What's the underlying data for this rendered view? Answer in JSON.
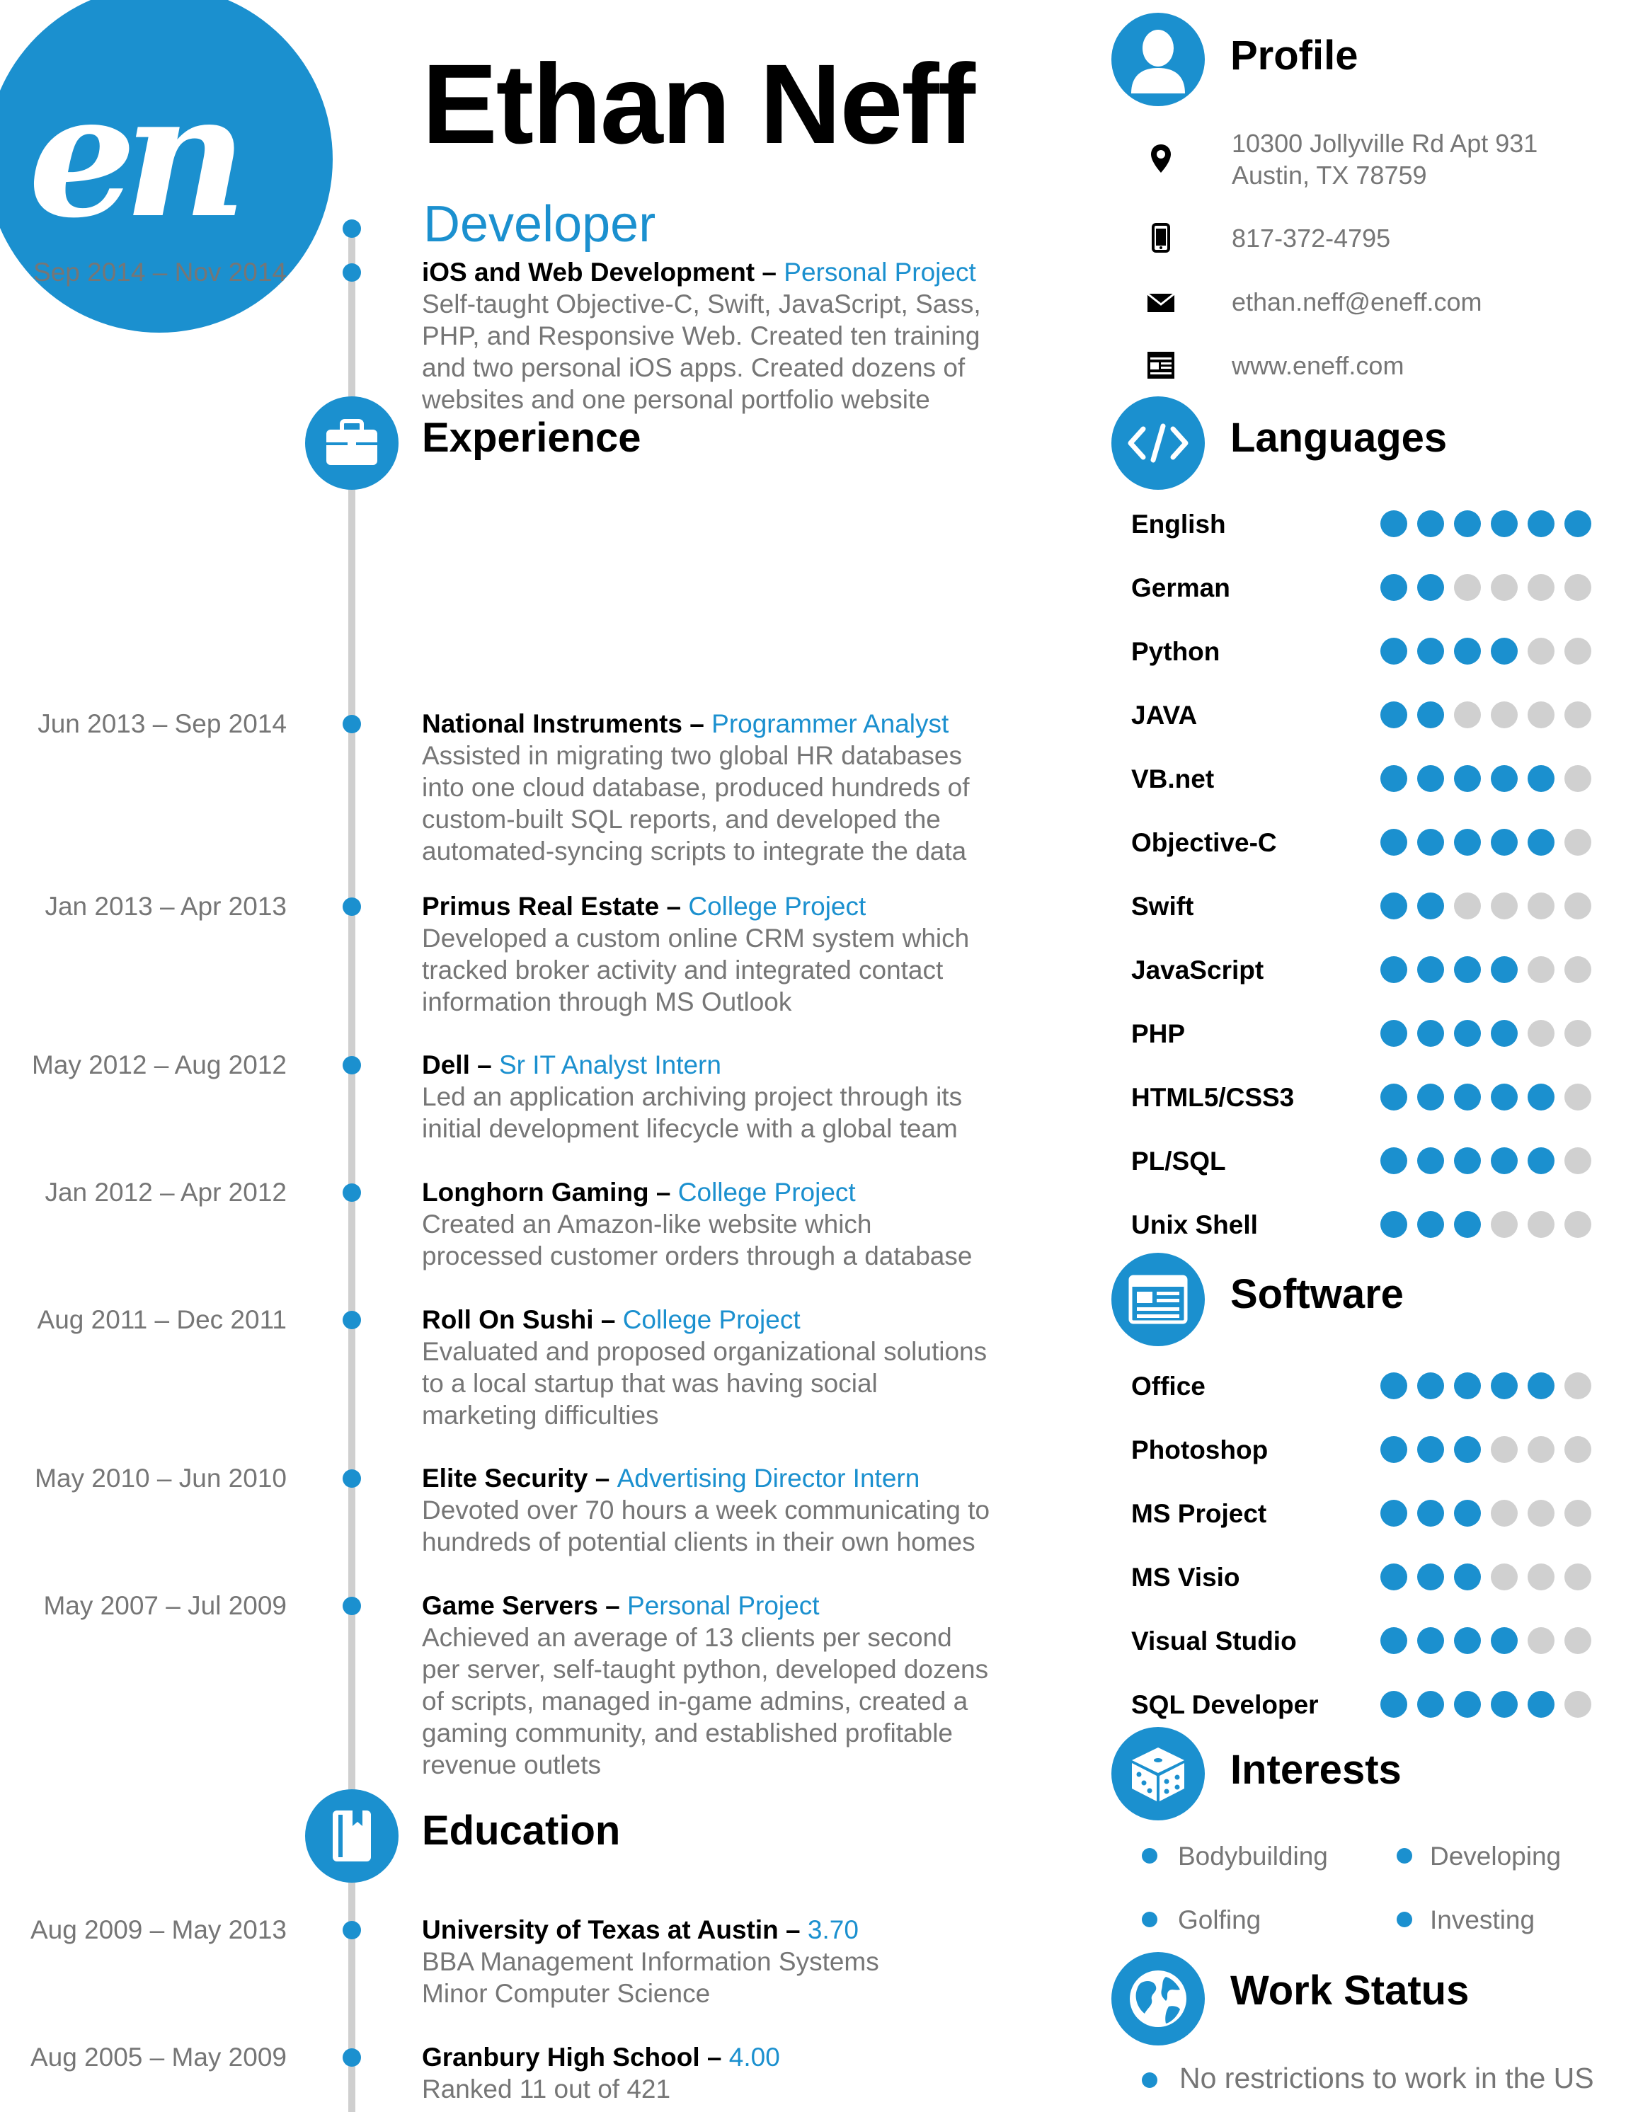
{
  "logo": {
    "text": "en"
  },
  "name": "Ethan Neff",
  "title": "Developer",
  "colors": {
    "accent": "#1b90cf",
    "muted_text": "#767676",
    "empty_dot": "#d0d0d0"
  },
  "sections": {
    "experience": "Experience",
    "education": "Education",
    "profile": "Profile",
    "languages": "Languages",
    "software": "Software",
    "interests": "Interests",
    "work_status": "Work Status"
  },
  "experience": [
    {
      "date": "Sep 2014 – Nov 2014",
      "company": "iOS and Web Development",
      "role": "Personal Project",
      "lines": [
        "Self-taught Objective-C, Swift, JavaScript, Sass,",
        "PHP, and Responsive Web. Created ten training",
        "and two personal iOS apps. Created dozens of",
        "websites and one personal portfolio website"
      ]
    },
    {
      "date": "Jun 2013 – Sep 2014",
      "company": "National Instruments",
      "role": "Programmer Analyst",
      "lines": [
        "Assisted in migrating two global HR databases",
        "into one cloud database, produced hundreds of",
        "custom-built SQL reports, and developed the",
        "automated-syncing scripts to integrate the data"
      ]
    },
    {
      "date": "Jan 2013 – Apr 2013",
      "company": "Primus Real Estate",
      "role": "College Project",
      "lines": [
        "Developed a custom online CRM system which",
        "tracked broker activity and integrated contact",
        "information through MS Outlook"
      ]
    },
    {
      "date": "May 2012 – Aug 2012",
      "company": "Dell",
      "role": "Sr IT Analyst Intern",
      "lines": [
        "Led an application archiving project through its",
        "initial development lifecycle with a global team"
      ]
    },
    {
      "date": "Jan 2012 – Apr 2012",
      "company": "Longhorn Gaming",
      "role": "College Project",
      "lines": [
        "Created an Amazon-like website which",
        "processed customer orders through a database"
      ]
    },
    {
      "date": "Aug 2011 – Dec 2011",
      "company": "Roll On Sushi",
      "role": "College Project",
      "lines": [
        "Evaluated and proposed organizational solutions",
        "to a local startup that was having social",
        "marketing difficulties"
      ]
    },
    {
      "date": "May 2010 – Jun 2010",
      "company": "Elite Security",
      "role": "Advertising Director Intern",
      "lines": [
        "Devoted over 70 hours a week communicating to",
        "hundreds of potential clients in their own homes"
      ]
    },
    {
      "date": "May 2007 – Jul 2009",
      "company": "Game Servers",
      "role": "Personal Project",
      "lines": [
        "Achieved an average of 13 clients per second",
        "per server, self-taught python, developed dozens",
        "of scripts, managed in-game admins, created a",
        "gaming community, and established profitable",
        "revenue outlets"
      ]
    }
  ],
  "education": [
    {
      "date": "Aug 2009 – May 2013",
      "school": "University of Texas at Austin",
      "gpa": "3.70",
      "lines": [
        "BBA Management Information Systems",
        "Minor Computer Science"
      ]
    },
    {
      "date": "Aug 2005 – May 2009",
      "school": "Granbury High School",
      "gpa": "4.00",
      "lines": [
        "Ranked 11 out of 421"
      ]
    }
  ],
  "profile": {
    "address_line1": "10300 Jollyville Rd Apt 931",
    "address_line2": "Austin, TX 78759",
    "phone": "817-372-4795",
    "email": "ethan.neff@eneff.com",
    "website": "www.eneff.com",
    "icons": [
      "location-pin-icon",
      "phone-icon",
      "envelope-icon",
      "website-icon"
    ]
  },
  "rating_max": 6,
  "languages": [
    {
      "name": "English",
      "level": 6
    },
    {
      "name": "German",
      "level": 2
    },
    {
      "name": "Python",
      "level": 4
    },
    {
      "name": "JAVA",
      "level": 2
    },
    {
      "name": "VB.net",
      "level": 5
    },
    {
      "name": "Objective-C",
      "level": 5
    },
    {
      "name": "Swift",
      "level": 2
    },
    {
      "name": "JavaScript",
      "level": 4
    },
    {
      "name": "PHP",
      "level": 4
    },
    {
      "name": "HTML5/CSS3",
      "level": 5
    },
    {
      "name": "PL/SQL",
      "level": 5
    },
    {
      "name": "Unix Shell",
      "level": 3
    }
  ],
  "software": [
    {
      "name": "Office",
      "level": 5
    },
    {
      "name": "Photoshop",
      "level": 3
    },
    {
      "name": "MS Project",
      "level": 3
    },
    {
      "name": "MS Visio",
      "level": 3
    },
    {
      "name": "Visual Studio",
      "level": 4
    },
    {
      "name": "SQL Developer",
      "level": 5
    }
  ],
  "interests": [
    "Bodybuilding",
    "Developing",
    "Golfing",
    "Investing"
  ],
  "work_status": "No restrictions to work in the US"
}
